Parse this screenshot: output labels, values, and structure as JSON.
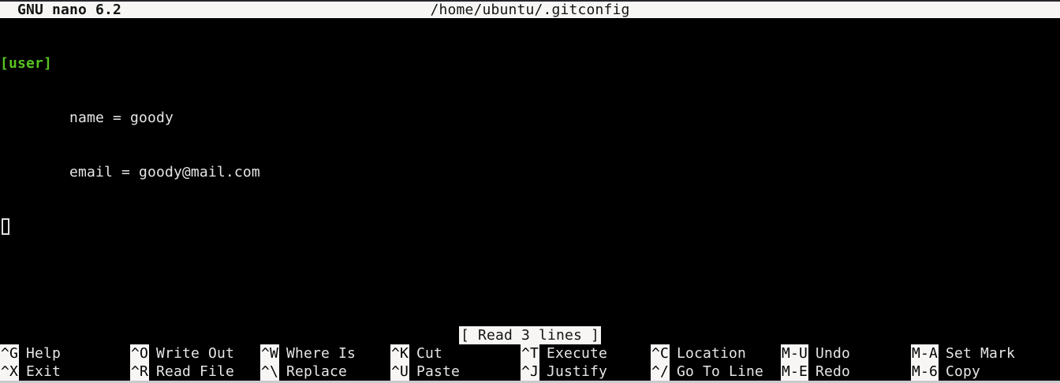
{
  "titlebar": {
    "app_version": "GNU nano 6.2",
    "file_path": "/home/ubuntu/.gitconfig"
  },
  "editor": {
    "lines": [
      "[user]",
      "        name = goody",
      "        email = goody@mail.com"
    ],
    "cursor_line": 4,
    "cursor_col": 0
  },
  "status": {
    "message": "[ Read 3 lines ]"
  },
  "shortcuts": {
    "row1": [
      {
        "key": "^G",
        "label": "Help"
      },
      {
        "key": "^O",
        "label": "Write Out"
      },
      {
        "key": "^W",
        "label": "Where Is"
      },
      {
        "key": "^K",
        "label": "Cut"
      },
      {
        "key": "^T",
        "label": "Execute"
      },
      {
        "key": "^C",
        "label": "Location"
      },
      {
        "key": "M-U",
        "label": "Undo"
      },
      {
        "key": "M-A",
        "label": "Set Mark"
      }
    ],
    "row2": [
      {
        "key": "^X",
        "label": "Exit"
      },
      {
        "key": "^R",
        "label": "Read File"
      },
      {
        "key": "^\\",
        "label": "Replace"
      },
      {
        "key": "^U",
        "label": "Paste"
      },
      {
        "key": "^J",
        "label": "Justify"
      },
      {
        "key": "^/",
        "label": "Go To Line"
      },
      {
        "key": "M-E",
        "label": "Redo"
      },
      {
        "key": "M-6",
        "label": "Copy"
      }
    ]
  },
  "colors": {
    "background": "#000000",
    "bar_background": "#f7f6f5",
    "bar_text": "#141414",
    "body_text": "#e6e6e6",
    "section_header_green": "#58c322",
    "top_strip": "#26262a",
    "bottom_strip": "#c9cbce"
  }
}
